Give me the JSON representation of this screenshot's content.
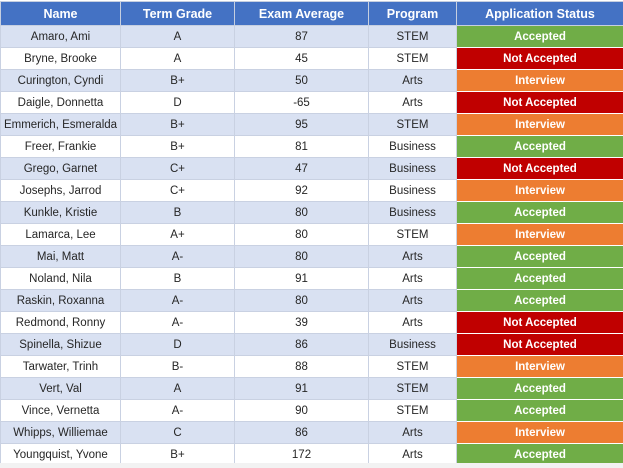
{
  "table": {
    "headers": [
      "Name",
      "Term Grade",
      "Exam Average",
      "Program",
      "Application Status"
    ],
    "rows": [
      {
        "name": "Amaro, Ami",
        "grade": "A",
        "exam": "87",
        "program": "STEM",
        "status": "Accepted"
      },
      {
        "name": "Bryne, Brooke",
        "grade": "A",
        "exam": "45",
        "program": "STEM",
        "status": "Not Accepted"
      },
      {
        "name": "Curington, Cyndi",
        "grade": "B+",
        "exam": "50",
        "program": "Arts",
        "status": "Interview"
      },
      {
        "name": "Daigle, Donnetta",
        "grade": "D",
        "exam": "-65",
        "program": "Arts",
        "status": "Not Accepted"
      },
      {
        "name": "Emmerich, Esmeralda",
        "grade": "B+",
        "exam": "95",
        "program": "STEM",
        "status": "Interview"
      },
      {
        "name": "Freer, Frankie",
        "grade": "B+",
        "exam": "81",
        "program": "Business",
        "status": "Accepted"
      },
      {
        "name": "Grego, Garnet",
        "grade": "C+",
        "exam": "47",
        "program": "Business",
        "status": "Not Accepted"
      },
      {
        "name": "Josephs, Jarrod",
        "grade": "C+",
        "exam": "92",
        "program": "Business",
        "status": "Interview"
      },
      {
        "name": "Kunkle, Kristie",
        "grade": "B",
        "exam": "80",
        "program": "Business",
        "status": "Accepted"
      },
      {
        "name": "Lamarca, Lee",
        "grade": "A+",
        "exam": "80",
        "program": "STEM",
        "status": "Interview"
      },
      {
        "name": "Mai, Matt",
        "grade": "A-",
        "exam": "80",
        "program": "Arts",
        "status": "Accepted"
      },
      {
        "name": "Noland, Nila",
        "grade": "B",
        "exam": "91",
        "program": "Arts",
        "status": "Accepted"
      },
      {
        "name": "Raskin, Roxanna",
        "grade": "A-",
        "exam": "80",
        "program": "Arts",
        "status": "Accepted"
      },
      {
        "name": "Redmond, Ronny",
        "grade": "A-",
        "exam": "39",
        "program": "Arts",
        "status": "Not Accepted"
      },
      {
        "name": "Spinella, Shizue",
        "grade": "D",
        "exam": "86",
        "program": "Business",
        "status": "Not Accepted"
      },
      {
        "name": "Tarwater, Trinh",
        "grade": "B-",
        "exam": "88",
        "program": "STEM",
        "status": "Interview"
      },
      {
        "name": "Vert, Val",
        "grade": "A",
        "exam": "91",
        "program": "STEM",
        "status": "Accepted"
      },
      {
        "name": "Vince, Vernetta",
        "grade": "A-",
        "exam": "90",
        "program": "STEM",
        "status": "Accepted"
      },
      {
        "name": "Whipps, Williemae",
        "grade": "C",
        "exam": "86",
        "program": "Arts",
        "status": "Interview"
      },
      {
        "name": "Youngquist, Yvone",
        "grade": "B+",
        "exam": "172",
        "program": "Arts",
        "status": "Accepted"
      }
    ]
  },
  "colors": {
    "header_bg": "#4472c4",
    "band_row": "#d9e1f2",
    "accepted": "#70ad47",
    "not_accepted": "#c00000",
    "interview": "#ed7d31"
  }
}
